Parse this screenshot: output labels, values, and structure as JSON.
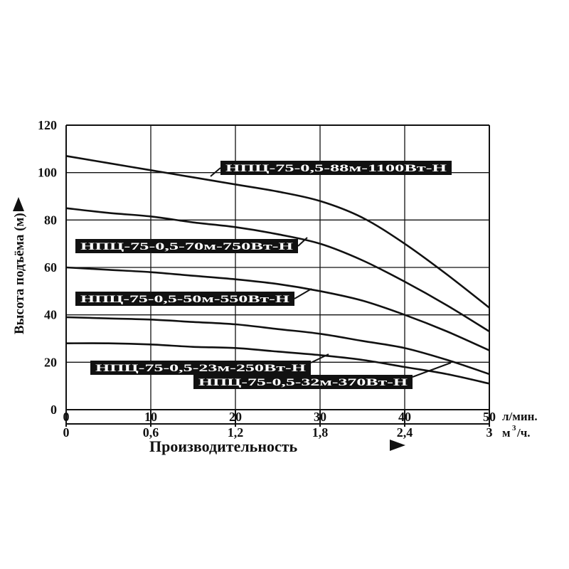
{
  "chart_data": {
    "type": "line",
    "ylabel": "Высота подъёма (м)",
    "xlabel": "Производительность",
    "x_unit_primary": "л/мин.",
    "x_unit_secondary": "м³/ч.",
    "xlim": [
      0,
      50
    ],
    "ylim": [
      0,
      120
    ],
    "grid": true,
    "y_ticks": [
      "0",
      "20",
      "40",
      "60",
      "80",
      "100",
      "120"
    ],
    "x_ticks_primary": [
      "0",
      "10",
      "20",
      "30",
      "40",
      "50"
    ],
    "x_ticks_secondary": [
      "0",
      "0,6",
      "1,2",
      "1,8",
      "2,4",
      "3"
    ],
    "series": [
      {
        "name": "НПЦ-75-0,5-88м-1100Вт-Н",
        "x": [
          0,
          5,
          10,
          15,
          20,
          25,
          30,
          35,
          40,
          45,
          50
        ],
        "y": [
          107,
          104,
          101,
          98,
          95,
          92,
          88,
          81,
          70,
          57,
          43
        ]
      },
      {
        "name": "НПЦ-75-0,5-70м-750Вт-Н",
        "x": [
          0,
          5,
          10,
          15,
          20,
          25,
          30,
          35,
          40,
          45,
          50
        ],
        "y": [
          85,
          83,
          81.5,
          79,
          77,
          74,
          70,
          63,
          54,
          44,
          33
        ]
      },
      {
        "name": "НПЦ-75-0,5-50м-550Вт-Н",
        "x": [
          0,
          5,
          10,
          15,
          20,
          25,
          30,
          35,
          40,
          45,
          50
        ],
        "y": [
          60,
          59,
          58,
          56.5,
          55,
          53,
          50,
          46,
          40,
          33,
          25
        ]
      },
      {
        "name": "НПЦ-75-0,5-32м-370Вт-Н",
        "x": [
          0,
          5,
          10,
          15,
          20,
          25,
          30,
          35,
          40,
          45,
          50
        ],
        "y": [
          39,
          38.5,
          38,
          37,
          36,
          34,
          32,
          29,
          26,
          21,
          15
        ]
      },
      {
        "name": "НПЦ-75-0,5-23м-250Вт-Н",
        "x": [
          0,
          5,
          10,
          15,
          20,
          25,
          30,
          35,
          40,
          45,
          50
        ],
        "y": [
          28,
          28,
          27.5,
          26.5,
          26,
          24.5,
          23,
          21,
          18,
          15,
          11
        ]
      }
    ]
  }
}
